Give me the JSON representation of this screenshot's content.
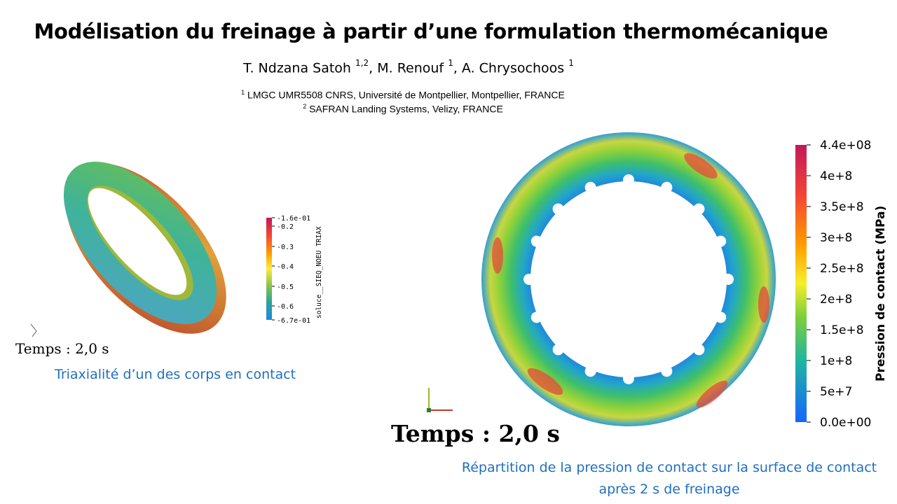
{
  "title": "Modélisation du freinage à partir d’une formulation thermomécanique",
  "authors": {
    "a1_name": "T. Ndzana Satoh",
    "a1_sup": "1,2",
    "a2_name": "M. Renouf",
    "a2_sup": "1",
    "a3_name": "A. Chrysochoos",
    "a3_sup": "1"
  },
  "affiliations": [
    {
      "sup": "1",
      "text": "LMGC UMR5508 CNRS, Université de Montpellier, Montpellier, FRANCE"
    },
    {
      "sup": "2",
      "text": "SAFRAN Landing Systems, Velizy, FRANCE"
    }
  ],
  "left_figure": {
    "time_label": "Temps : 2,0 s",
    "colorbar_title": "soluce__SIEQ_NOEU TRIAX",
    "colorbar_ticks": [
      "-1.6e-01",
      "-0.2",
      "-0.3",
      "-0.4",
      "-0.5",
      "-0.6",
      "-6.7e-01"
    ],
    "caption": "Triaxialité d’un des corps en contact"
  },
  "right_figure": {
    "time_label": "Temps : 2,0 s",
    "colorbar_title": "Pression de contact   (MPa)",
    "colorbar_ticks": [
      "4.4e+08",
      "4e+8",
      "3.5e+8",
      "3e+8",
      "2.5e+8",
      "2e+8",
      "1.5e+8",
      "1e+8",
      "5e+7",
      "0.0e+00"
    ],
    "caption_line1": "Répartition de la pression de contact sur la surface de contact",
    "caption_line2": "après 2 s de freinage"
  },
  "colors": {
    "caption": "#1f6fbf",
    "map_high": "#c2185b",
    "map_mid": "#ffeb3b",
    "map_low": "#1565ff"
  }
}
